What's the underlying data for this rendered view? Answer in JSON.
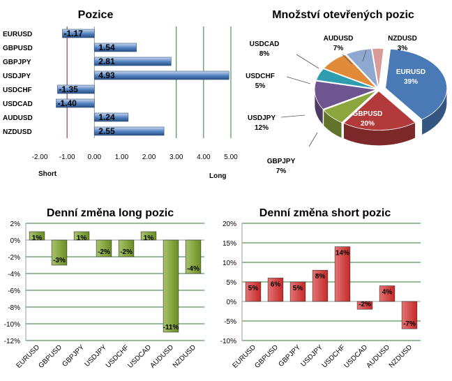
{
  "chart_data": [
    {
      "type": "bar",
      "orientation": "horizontal",
      "title": "Pozice",
      "categories": [
        "EURUSD",
        "GBPUSD",
        "GBPJPY",
        "USDJPY",
        "USDCHF",
        "USDCAD",
        "AUDUSD",
        "NZDUSD"
      ],
      "values": [
        -1.17,
        1.54,
        2.81,
        4.93,
        -1.35,
        -1.4,
        1.24,
        2.55
      ],
      "value_labels": [
        "-1.17",
        "1.54",
        "2.81",
        "4.93",
        "-1.35",
        "-1.40",
        "1.24",
        "2.55"
      ],
      "xlim": [
        -2,
        5
      ],
      "x_ticks": [
        "-2.00",
        "-1.00",
        "0.00",
        "1.00",
        "2.00",
        "3.00",
        "4.00",
        "5.00"
      ],
      "left_label": "Short",
      "right_label": "Long",
      "bar_color": "#4f7fbf",
      "line_colors": {
        "short": "#8b1a1a",
        "long": "#2e7d32"
      }
    },
    {
      "type": "pie",
      "title": "Množství otevřených pozic",
      "labels": [
        "EURUSD",
        "GBPUSD",
        "GBPJPY",
        "USDJPY",
        "USDCHF",
        "USDCAD",
        "AUDUSD",
        "NZDUSD"
      ],
      "values": [
        39,
        20,
        7,
        12,
        5,
        8,
        7,
        3
      ],
      "value_labels": [
        "39%",
        "20%",
        "7%",
        "12%",
        "5%",
        "8%",
        "7%",
        "3%"
      ],
      "colors": [
        "#4a7ab5",
        "#b23a3a",
        "#8ca63e",
        "#6e558f",
        "#2f9db0",
        "#e08a3a",
        "#8fa8cf",
        "#d99a9a"
      ]
    },
    {
      "type": "bar",
      "title": "Denní změna long pozic",
      "categories": [
        "EURUSD",
        "GBPUSD",
        "GBPJPY",
        "USDJPY",
        "USDCHF",
        "USDCAD",
        "AUDUSD",
        "NZDUSD"
      ],
      "values": [
        1,
        -3,
        1,
        -2,
        -2,
        1,
        -11,
        -4
      ],
      "value_labels": [
        "1%",
        "-3%",
        "1%",
        "-2%",
        "-2%",
        "1%",
        "-11%",
        "-4%"
      ],
      "ylim": [
        -12,
        2
      ],
      "y_ticks": [
        "2%",
        "0%",
        "-2%",
        "-4%",
        "-6%",
        "-8%",
        "-10%",
        "-12%"
      ],
      "bar_color": "#6b8e23"
    },
    {
      "type": "bar",
      "title": "Denní změna short pozic",
      "categories": [
        "EURUSD",
        "GBPUSD",
        "GBPJPY",
        "USDJPY",
        "USDCHF",
        "USDCAD",
        "AUDUSD",
        "NZDUSD"
      ],
      "values": [
        5,
        6,
        5,
        8,
        14,
        -2,
        4,
        -7
      ],
      "value_labels": [
        "5%",
        "6%",
        "5%",
        "8%",
        "14%",
        "-2%",
        "4%",
        "-7%"
      ],
      "ylim": [
        -10,
        20
      ],
      "y_ticks": [
        "20%",
        "15%",
        "10%",
        "5%",
        "0%",
        "-5%",
        "-10%"
      ],
      "bar_color": "#c62828"
    }
  ]
}
